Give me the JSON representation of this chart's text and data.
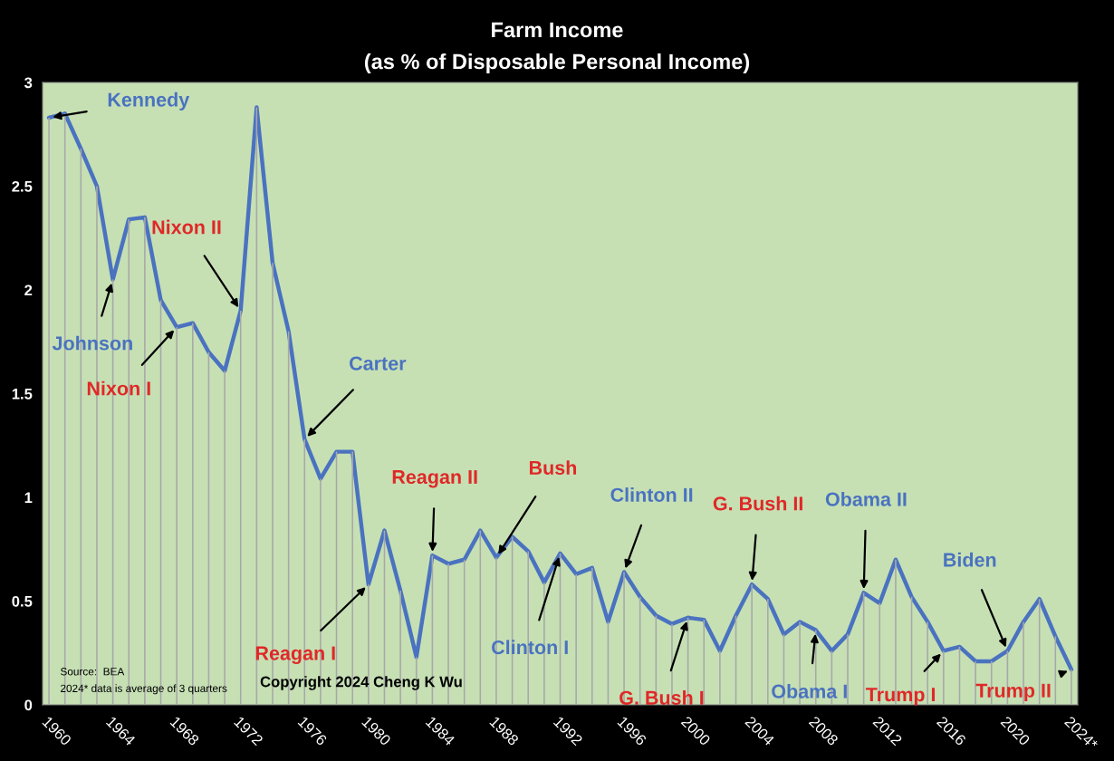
{
  "chart_data": {
    "type": "line",
    "title": "Farm Income",
    "subtitle": "(as % of Disposable Personal Income)",
    "x": [
      1960,
      1961,
      1962,
      1963,
      1964,
      1965,
      1966,
      1967,
      1968,
      1969,
      1970,
      1971,
      1972,
      1973,
      1974,
      1975,
      1976,
      1977,
      1978,
      1979,
      1980,
      1981,
      1982,
      1983,
      1984,
      1985,
      1986,
      1987,
      1988,
      1989,
      1990,
      1991,
      1992,
      1993,
      1994,
      1995,
      1996,
      1997,
      1998,
      1999,
      2000,
      2001,
      2002,
      2003,
      2004,
      2005,
      2006,
      2007,
      2008,
      2009,
      2010,
      2011,
      2012,
      2013,
      2014,
      2015,
      2016,
      2017,
      2018,
      2019,
      2020,
      2021,
      2022,
      2023,
      2024
    ],
    "series": [
      {
        "type": "bar",
        "color": "#a8a8a8",
        "values": [
          2.83,
          2.85,
          2.68,
          2.5,
          2.05,
          2.34,
          2.35,
          1.95,
          1.82,
          1.84,
          1.7,
          1.61,
          1.9,
          2.88,
          2.13,
          1.8,
          1.28,
          1.09,
          1.22,
          1.22,
          0.58,
          0.84,
          0.55,
          0.23,
          0.72,
          0.68,
          0.7,
          0.84,
          0.71,
          0.81,
          0.74,
          0.59,
          0.73,
          0.63,
          0.66,
          0.4,
          0.64,
          0.52,
          0.43,
          0.39,
          0.42,
          0.41,
          0.26,
          0.43,
          0.58,
          0.51,
          0.34,
          0.4,
          0.36,
          0.26,
          0.34,
          0.54,
          0.49,
          0.7,
          0.52,
          0.4,
          0.26,
          0.28,
          0.21,
          0.21,
          0.26,
          0.4,
          0.51,
          0.33,
          0.17
        ]
      },
      {
        "color": "#4a72c0",
        "values": [
          2.83,
          2.85,
          2.68,
          2.5,
          2.05,
          2.34,
          2.35,
          1.95,
          1.82,
          1.84,
          1.7,
          1.61,
          1.9,
          2.88,
          2.13,
          1.8,
          1.28,
          1.09,
          1.22,
          1.22,
          0.58,
          0.84,
          0.55,
          0.23,
          0.72,
          0.68,
          0.7,
          0.84,
          0.71,
          0.81,
          0.74,
          0.59,
          0.73,
          0.63,
          0.66,
          0.4,
          0.64,
          0.52,
          0.43,
          0.39,
          0.42,
          0.41,
          0.26,
          0.43,
          0.58,
          0.51,
          0.34,
          0.4,
          0.36,
          0.26,
          0.34,
          0.54,
          0.49,
          0.7,
          0.52,
          0.4,
          0.26,
          0.28,
          0.21,
          0.21,
          0.26,
          0.4,
          0.51,
          0.33,
          0.17
        ]
      }
    ],
    "xlim": [
      1959.6,
      2024.4
    ],
    "ylim": [
      0,
      3
    ],
    "xticks": [
      1960,
      1964,
      1968,
      1972,
      1976,
      1980,
      1984,
      1988,
      1992,
      1996,
      2000,
      2004,
      2008,
      2012,
      2016,
      2020,
      {
        "value": 2024,
        "label": "2024*"
      }
    ],
    "yticks": [
      0,
      0.5,
      1,
      1.5,
      2,
      2.5,
      3
    ],
    "legend": false,
    "marker": "none",
    "line_style": "solid",
    "annotations": [
      {
        "text": "Kennedy",
        "x": 1960,
        "y": 2.83
      },
      {
        "text": "Johnson",
        "x": 1964,
        "y": 2.05
      },
      {
        "text": "Nixon I",
        "x": 1968,
        "y": 1.82
      },
      {
        "text": "Nixon II",
        "x": 1972,
        "y": 1.9
      },
      {
        "text": "Carter",
        "x": 1976,
        "y": 1.28
      },
      {
        "text": "Reagan I",
        "x": 1980,
        "y": 0.58
      },
      {
        "text": "Reagan II",
        "x": 1984,
        "y": 0.72
      },
      {
        "text": "Bush",
        "x": 1988,
        "y": 0.71
      },
      {
        "text": "Clinton I",
        "x": 1992,
        "y": 0.73
      },
      {
        "text": "Clinton II",
        "x": 1996,
        "y": 0.64
      },
      {
        "text": "G. Bush I",
        "x": 2000,
        "y": 0.42
      },
      {
        "text": "G. Bush II",
        "x": 2004,
        "y": 0.58
      },
      {
        "text": "Obama I",
        "x": 2008,
        "y": 0.36
      },
      {
        "text": "Obama II",
        "x": 2011,
        "y": 0.54
      },
      {
        "text": "Trump I",
        "x": 2016,
        "y": 0.26
      },
      {
        "text": "Biden",
        "x": 2020,
        "y": 0.26
      },
      {
        "text": "Trump II",
        "x": 2024,
        "y": 0.17
      },
      "Source:  BEA",
      "2024* data is average of 3 quarters",
      "Copyright 2024 Cheng K Wu"
    ]
  }
}
